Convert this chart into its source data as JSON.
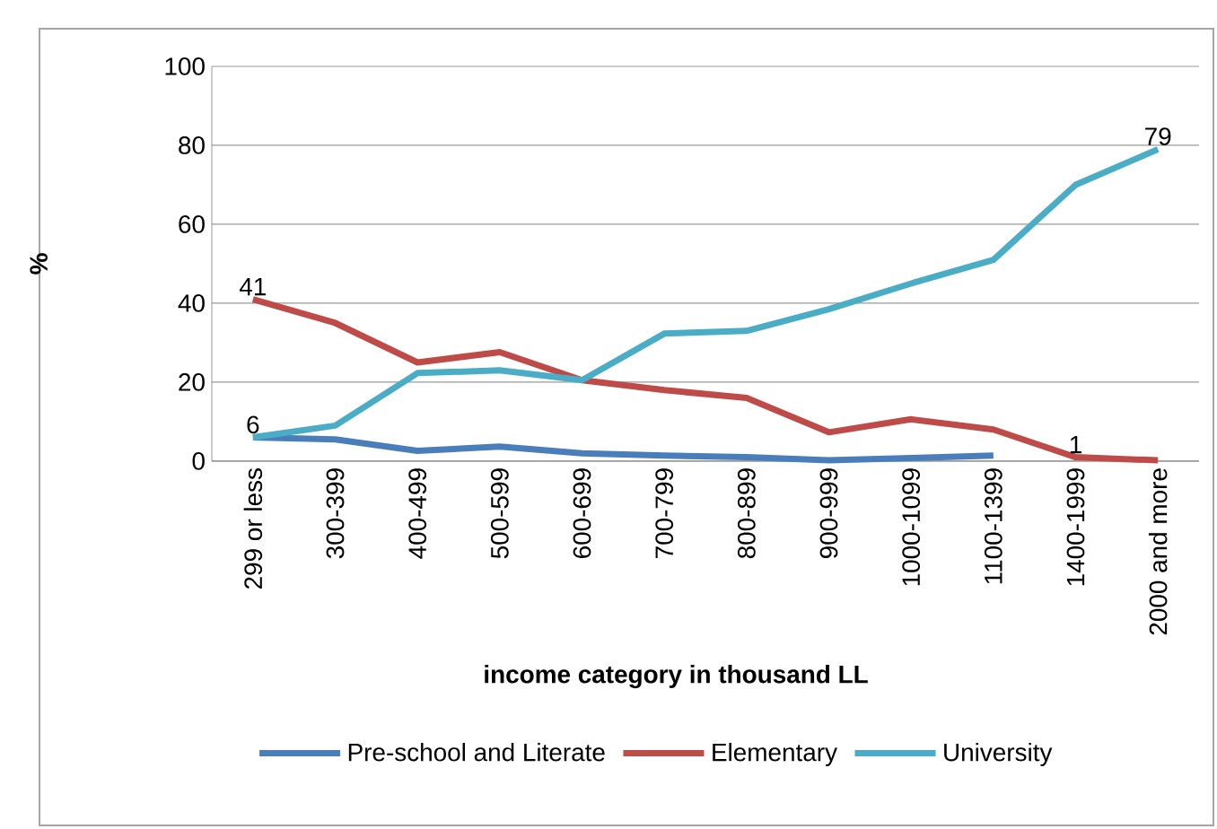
{
  "chart_data": {
    "type": "line",
    "xlabel": "income category in thousand LL",
    "ylabel": "%",
    "categories": [
      "299 or less",
      "300-399",
      "400-499",
      "500-599",
      "600-699",
      "700-799",
      "800-899",
      "900-999",
      "1000-1099",
      "1100-1399",
      "1400-1999",
      "2000 and more"
    ],
    "series": [
      {
        "name": "Pre-school and Literate",
        "color": "#4a7ebb",
        "values": [
          6,
          5.5,
          2.6,
          3.7,
          2,
          1.4,
          1,
          0.2,
          0.8,
          1.4,
          null,
          null
        ],
        "value_labels": [
          "6",
          null,
          null,
          null,
          null,
          null,
          null,
          null,
          null,
          null,
          null,
          null
        ]
      },
      {
        "name": "Elementary",
        "color": "#be4b48",
        "values": [
          41,
          35,
          25,
          27.6,
          20.5,
          18,
          16,
          7.3,
          10.6,
          8,
          1,
          0.2
        ],
        "value_labels": [
          "41",
          null,
          null,
          null,
          null,
          null,
          null,
          null,
          null,
          null,
          "1",
          null
        ]
      },
      {
        "name": "University",
        "color": "#4bacc6",
        "values": [
          6,
          9,
          22.3,
          23,
          20.5,
          32.3,
          33,
          38.5,
          45,
          51,
          70,
          79
        ],
        "value_labels": [
          null,
          null,
          null,
          null,
          null,
          null,
          null,
          null,
          null,
          null,
          null,
          "79"
        ]
      }
    ],
    "ylim": [
      0,
      100
    ],
    "yticks": [
      0,
      20,
      40,
      60,
      80,
      100
    ],
    "grid": "y",
    "legend": "bottom",
    "marker": "none",
    "line_style": "solid"
  }
}
